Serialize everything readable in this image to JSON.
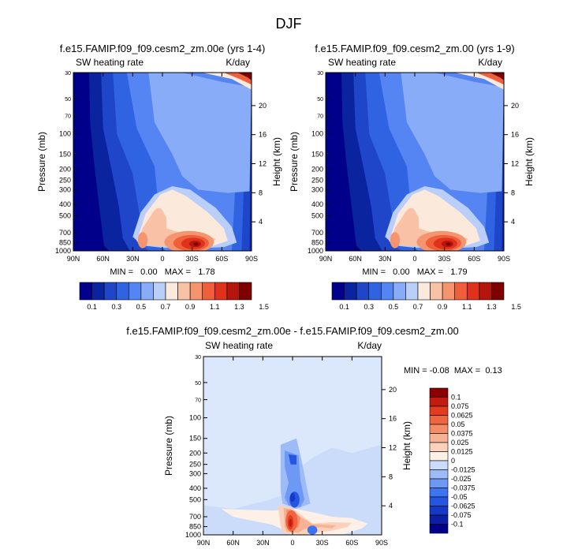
{
  "figure_title": "DJF",
  "palettes": {
    "blue_red_14": [
      "#00008b",
      "#0a24a0",
      "#1f45c8",
      "#2f63e2",
      "#5585f2",
      "#88acf7",
      "#b9cff9",
      "#fbe9dc",
      "#f9c2a7",
      "#f5956f",
      "#ef5f3b",
      "#e0311a",
      "#b4150c",
      "#7f0000"
    ],
    "diff_16": [
      "#00008b",
      "#0a1fa3",
      "#1538c5",
      "#2654e3",
      "#3d74f0",
      "#6d98f4",
      "#9dbbf7",
      "#cadcfa",
      "#fdf0e6",
      "#fad1bb",
      "#f7b193",
      "#f48c67",
      "#ef6540",
      "#e33b1f",
      "#c01d10",
      "#8b0000"
    ]
  },
  "chart_data": [
    {
      "type": "heatmap",
      "title": "f.e15.FAMIP.f09_f09.cesm2_zm.00e (yrs 1-4)",
      "left_label": "SW heating rate",
      "right_label": "K/day",
      "xlabel": "",
      "ylabel": "Pressure (mb)",
      "y2label": "Height (km)",
      "x_ticks": [
        "90N",
        "60N",
        "30N",
        "0",
        "30S",
        "60S",
        "90S"
      ],
      "y_ticks": [
        "30",
        "50",
        "70",
        "100",
        "150",
        "200",
        "250",
        "300",
        "400",
        "500",
        "700",
        "850",
        "1000"
      ],
      "y2_ticks": [
        "20",
        "16",
        "12",
        "8",
        "4"
      ],
      "xlim": [
        -90,
        90
      ],
      "ylim": [
        1000,
        30
      ],
      "min_max": "MIN =   0.00   MAX =   1.78",
      "colorbar_labels": [
        "0.1",
        "0.3",
        "0.5",
        "0.7",
        "0.9",
        "1.1",
        "1.3",
        "1.5"
      ],
      "palette": "blue_red_14"
    },
    {
      "type": "heatmap",
      "title": "f.e15.FAMIP.f09_f09.cesm2_zm.00 (yrs 1-9)",
      "left_label": "SW heating rate",
      "right_label": "K/day",
      "xlabel": "",
      "ylabel": "Pressure (mb)",
      "y2label": "Height (km)",
      "x_ticks": [
        "90N",
        "60N",
        "30N",
        "0",
        "30S",
        "60S",
        "90S"
      ],
      "y_ticks": [
        "30",
        "50",
        "70",
        "100",
        "150",
        "200",
        "250",
        "300",
        "400",
        "500",
        "700",
        "850",
        "1000"
      ],
      "y2_ticks": [
        "20",
        "16",
        "12",
        "8",
        "4"
      ],
      "xlim": [
        -90,
        90
      ],
      "ylim": [
        1000,
        30
      ],
      "min_max": "MIN =   0.00   MAX =   1.79",
      "colorbar_labels": [
        "0.1",
        "0.3",
        "0.5",
        "0.7",
        "0.9",
        "1.1",
        "1.3",
        "1.5"
      ],
      "palette": "blue_red_14"
    },
    {
      "type": "heatmap",
      "title": "f.e15.FAMIP.f09_f09.cesm2_zm.00e - f.e15.FAMIP.f09_f09.cesm2_zm.00",
      "left_label": "SW heating rate",
      "right_label": "K/day",
      "xlabel": "",
      "ylabel": "Pressure (mb)",
      "y2label": "Height (km)",
      "x_ticks": [
        "90N",
        "60N",
        "30N",
        "0",
        "30S",
        "60S",
        "90S"
      ],
      "y_ticks": [
        "30",
        "50",
        "70",
        "100",
        "150",
        "200",
        "250",
        "300",
        "400",
        "500",
        "700",
        "850",
        "1000"
      ],
      "y2_ticks": [
        "20",
        "16",
        "12",
        "8",
        "4"
      ],
      "xlim": [
        -90,
        90
      ],
      "ylim": [
        1000,
        30
      ],
      "min_max": "MIN = -0.08  MAX =  0.13",
      "colorbar_labels": [
        "0.1",
        "0.075",
        "0.0625",
        "0.05",
        "0.0375",
        "0.025",
        "0.0125",
        "0",
        "-0.0125",
        "-0.025",
        "-0.0375",
        "-0.05",
        "-0.0625",
        "-0.075",
        "-0.1"
      ],
      "palette": "diff_16"
    }
  ]
}
